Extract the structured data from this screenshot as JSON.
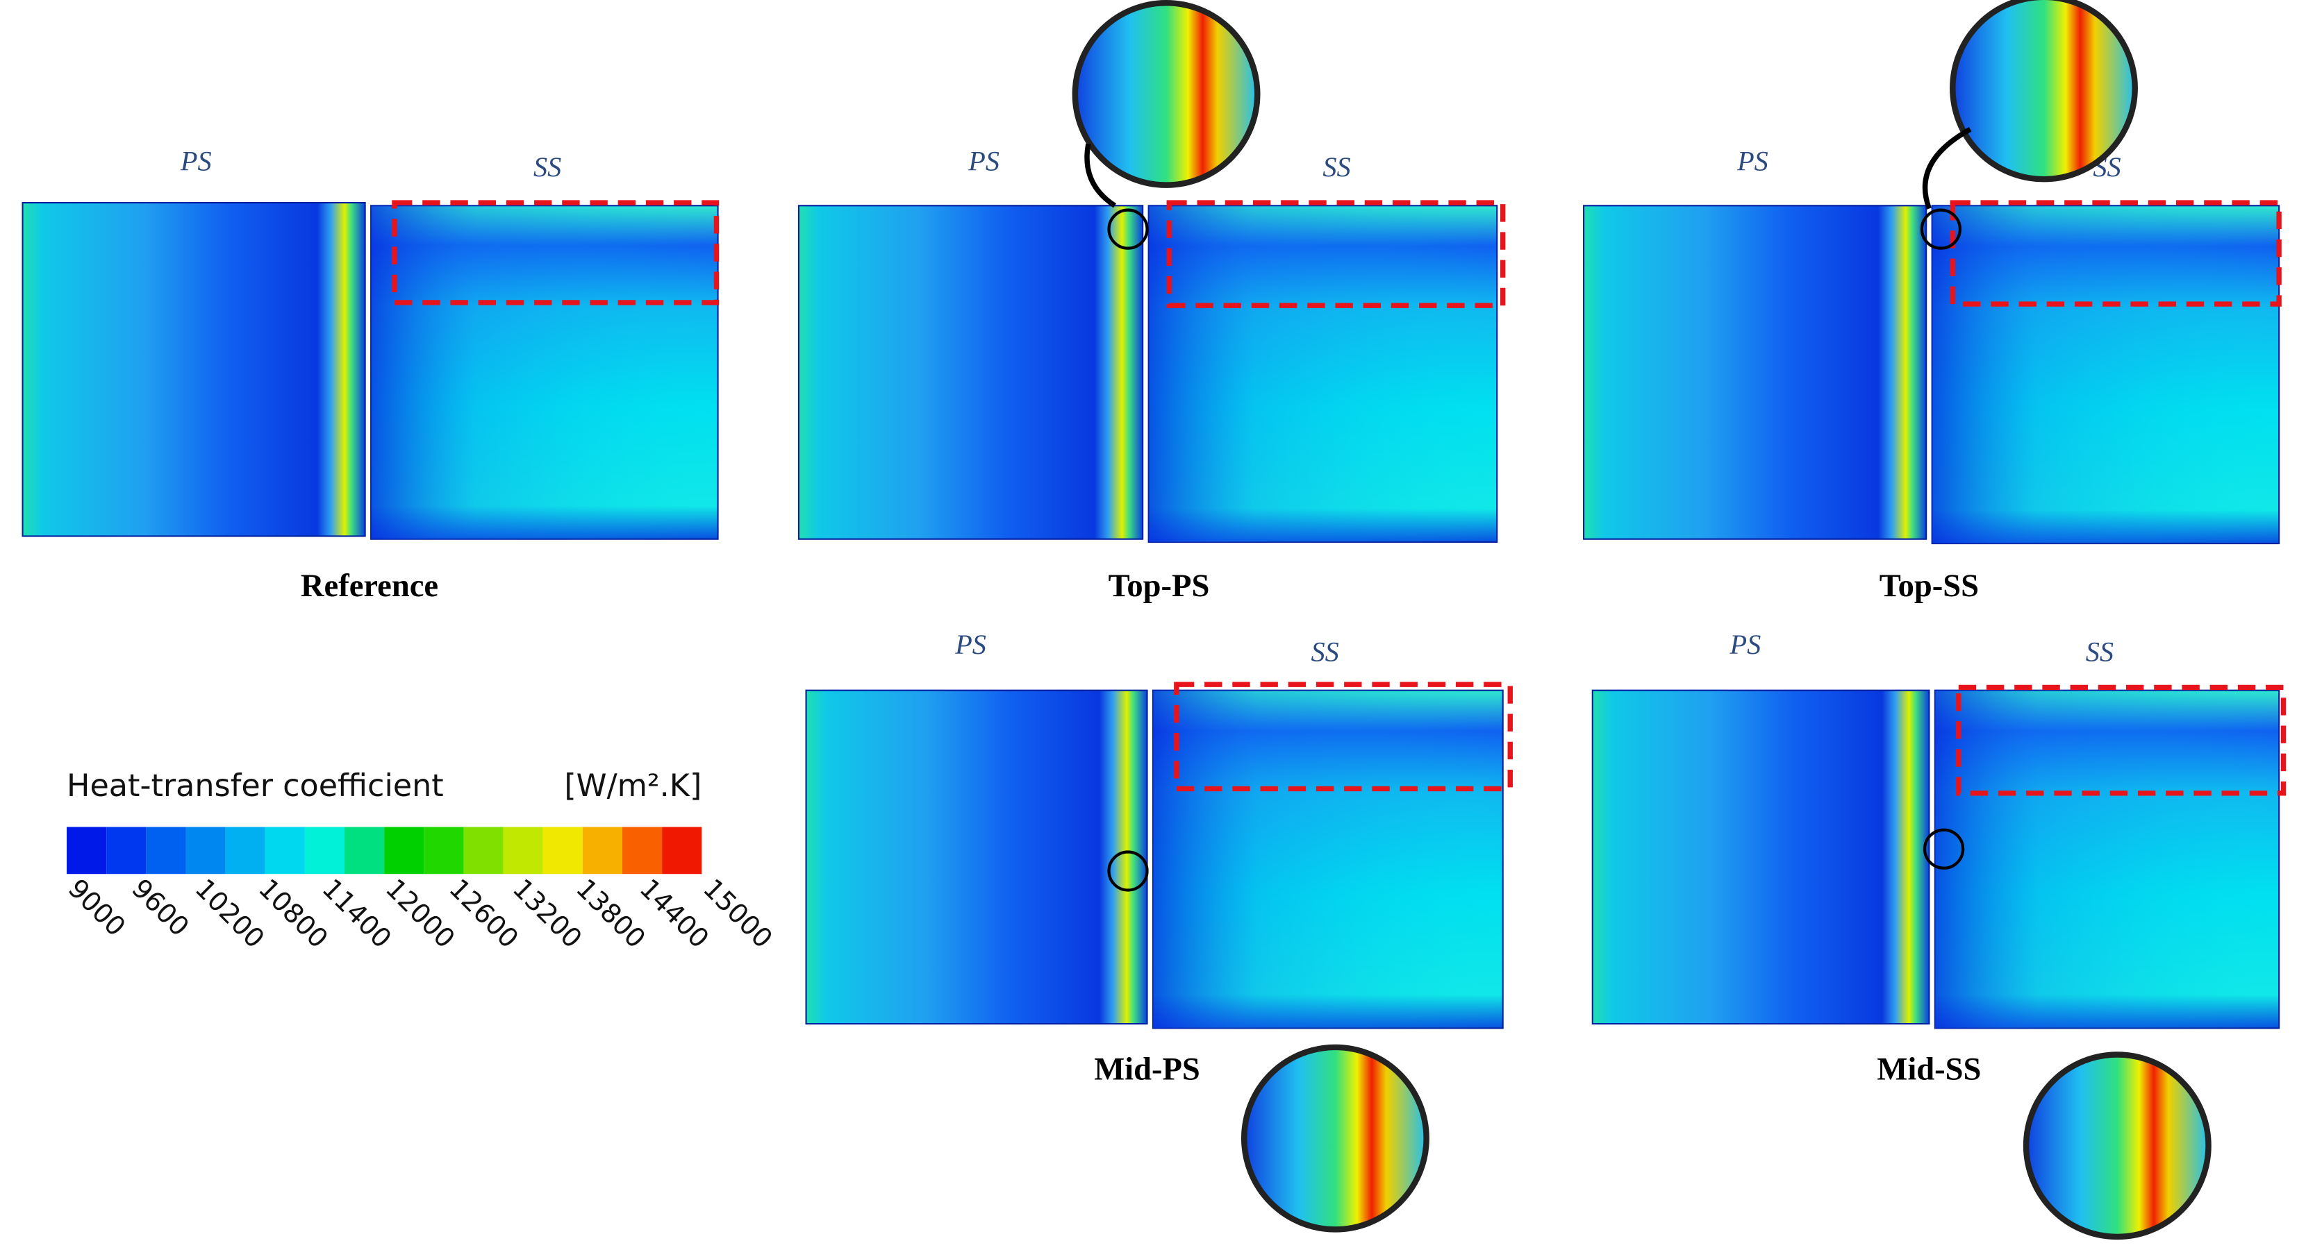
{
  "panels": [
    {
      "title": "Reference",
      "ps_label": "PS",
      "ss_label": "SS"
    },
    {
      "title": "Top-PS",
      "ps_label": "PS",
      "ss_label": "SS"
    },
    {
      "title": "Top-SS",
      "ps_label": "PS",
      "ss_label": "SS"
    },
    {
      "title": "Mid-PS",
      "ps_label": "PS",
      "ss_label": "SS"
    },
    {
      "title": "Mid-SS",
      "ps_label": "PS",
      "ss_label": "SS"
    }
  ],
  "colorbar": {
    "title": "Heat-transfer coefficient",
    "unit": "[W/m².K]",
    "ticks": [
      9000,
      9600,
      10200,
      10800,
      11400,
      12000,
      12600,
      13200,
      13800,
      14400,
      15000
    ]
  }
}
